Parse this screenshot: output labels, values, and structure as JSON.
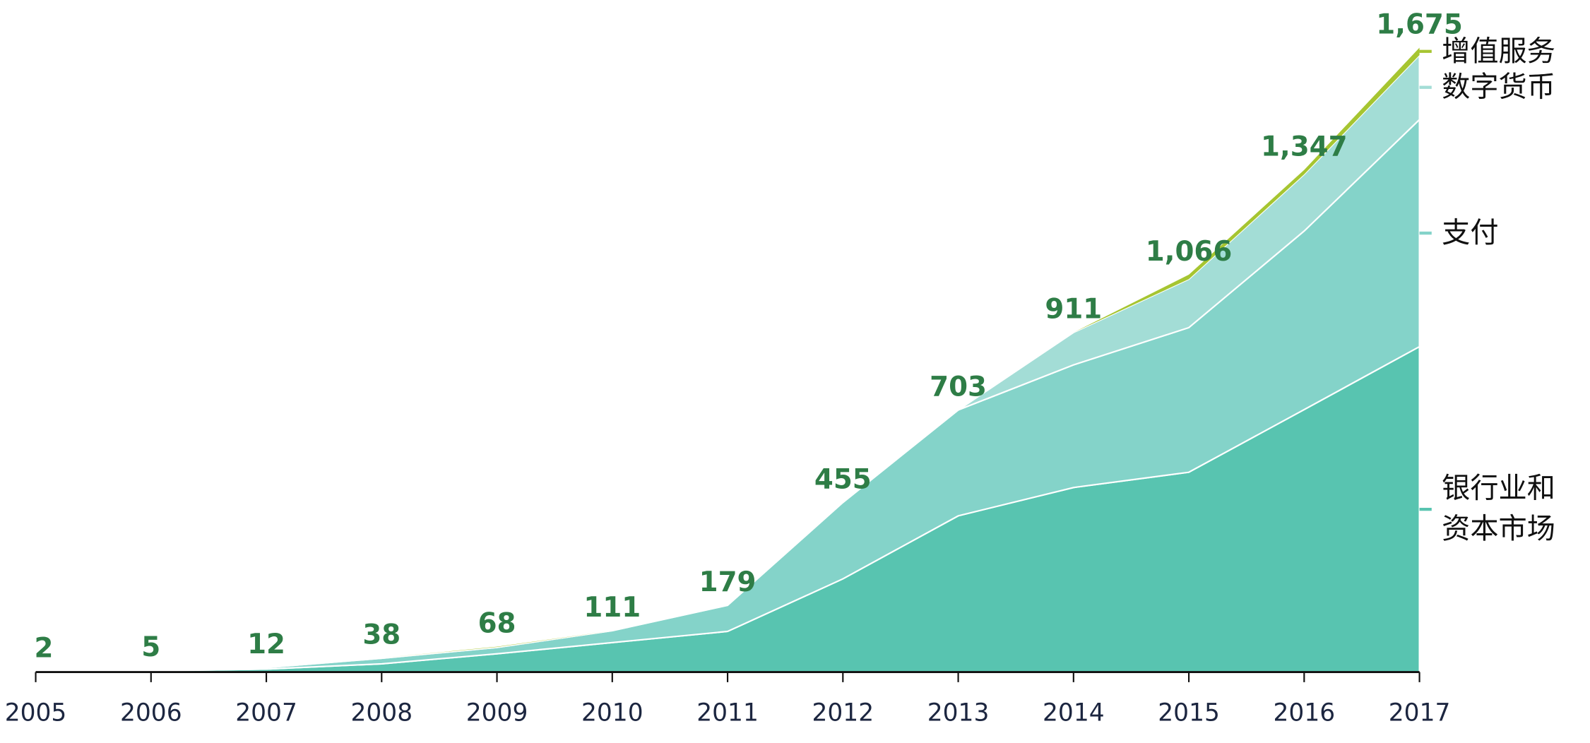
{
  "chart_data": {
    "type": "stacked-area",
    "categories": [
      "2005",
      "2006",
      "2007",
      "2008",
      "2009",
      "2010",
      "2011",
      "2012",
      "2013",
      "2014",
      "2015",
      "2016",
      "2017"
    ],
    "series": [
      {
        "name": "银行业和资本市场",
        "color": "#58c4b0",
        "values": [
          1,
          3,
          8,
          22,
          49,
          79,
          109,
          250,
          419,
          495,
          536,
          704,
          873
        ]
      },
      {
        "name": "支付",
        "color": "#84d3c9",
        "values": [
          1,
          2,
          4,
          15,
          17,
          32,
          70,
          205,
          284,
          329,
          388,
          479,
          609
        ]
      },
      {
        "name": "数字货币",
        "color": "#a3ddd6",
        "values": [
          0,
          0,
          0,
          1,
          1,
          0,
          0,
          0,
          0,
          87,
          130,
          152,
          173
        ]
      },
      {
        "name": "增值服务",
        "color": "#a6c531",
        "values": [
          0,
          0,
          0,
          0,
          1,
          0,
          0,
          0,
          0,
          0,
          12,
          12,
          20
        ]
      }
    ],
    "totals": [
      2,
      5,
      12,
      38,
      68,
      111,
      179,
      455,
      703,
      911,
      1066,
      1347,
      1675
    ],
    "totals_labels": [
      "2",
      "5",
      "12",
      "38",
      "68",
      "111",
      "179",
      "455",
      "703",
      "911",
      "1,066",
      "1,347",
      "1,675"
    ],
    "label_color": "#2e7d46"
  }
}
